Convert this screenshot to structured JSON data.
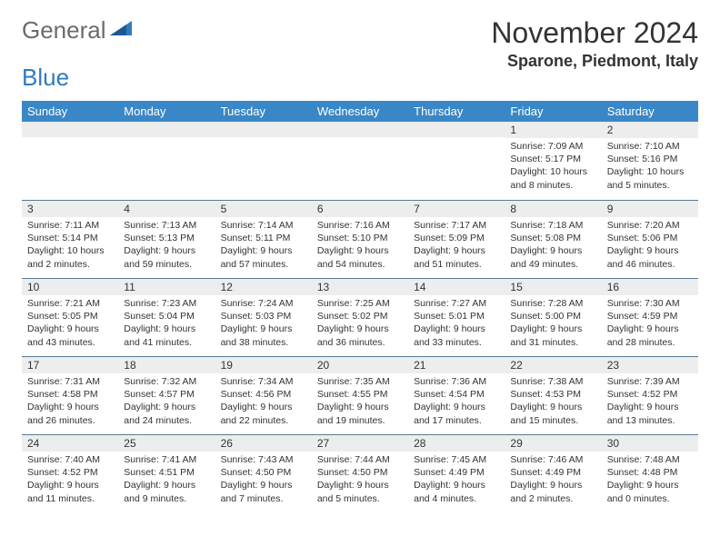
{
  "logo": {
    "text1": "General",
    "text2": "Blue"
  },
  "title": "November 2024",
  "location": "Sparone, Piedmont, Italy",
  "colors": {
    "header_bg": "#3a87c7",
    "daynum_bg": "#eceeee",
    "day_border": "#5a7a94",
    "logo_gray": "#6b6b6b",
    "logo_blue": "#2f7bbf"
  },
  "weekdays": [
    "Sunday",
    "Monday",
    "Tuesday",
    "Wednesday",
    "Thursday",
    "Friday",
    "Saturday"
  ],
  "weeks": [
    [
      null,
      null,
      null,
      null,
      null,
      {
        "n": "1",
        "sr": "7:09 AM",
        "ss": "5:17 PM",
        "dl": "10 hours and 8 minutes."
      },
      {
        "n": "2",
        "sr": "7:10 AM",
        "ss": "5:16 PM",
        "dl": "10 hours and 5 minutes."
      }
    ],
    [
      {
        "n": "3",
        "sr": "7:11 AM",
        "ss": "5:14 PM",
        "dl": "10 hours and 2 minutes."
      },
      {
        "n": "4",
        "sr": "7:13 AM",
        "ss": "5:13 PM",
        "dl": "9 hours and 59 minutes."
      },
      {
        "n": "5",
        "sr": "7:14 AM",
        "ss": "5:11 PM",
        "dl": "9 hours and 57 minutes."
      },
      {
        "n": "6",
        "sr": "7:16 AM",
        "ss": "5:10 PM",
        "dl": "9 hours and 54 minutes."
      },
      {
        "n": "7",
        "sr": "7:17 AM",
        "ss": "5:09 PM",
        "dl": "9 hours and 51 minutes."
      },
      {
        "n": "8",
        "sr": "7:18 AM",
        "ss": "5:08 PM",
        "dl": "9 hours and 49 minutes."
      },
      {
        "n": "9",
        "sr": "7:20 AM",
        "ss": "5:06 PM",
        "dl": "9 hours and 46 minutes."
      }
    ],
    [
      {
        "n": "10",
        "sr": "7:21 AM",
        "ss": "5:05 PM",
        "dl": "9 hours and 43 minutes."
      },
      {
        "n": "11",
        "sr": "7:23 AM",
        "ss": "5:04 PM",
        "dl": "9 hours and 41 minutes."
      },
      {
        "n": "12",
        "sr": "7:24 AM",
        "ss": "5:03 PM",
        "dl": "9 hours and 38 minutes."
      },
      {
        "n": "13",
        "sr": "7:25 AM",
        "ss": "5:02 PM",
        "dl": "9 hours and 36 minutes."
      },
      {
        "n": "14",
        "sr": "7:27 AM",
        "ss": "5:01 PM",
        "dl": "9 hours and 33 minutes."
      },
      {
        "n": "15",
        "sr": "7:28 AM",
        "ss": "5:00 PM",
        "dl": "9 hours and 31 minutes."
      },
      {
        "n": "16",
        "sr": "7:30 AM",
        "ss": "4:59 PM",
        "dl": "9 hours and 28 minutes."
      }
    ],
    [
      {
        "n": "17",
        "sr": "7:31 AM",
        "ss": "4:58 PM",
        "dl": "9 hours and 26 minutes."
      },
      {
        "n": "18",
        "sr": "7:32 AM",
        "ss": "4:57 PM",
        "dl": "9 hours and 24 minutes."
      },
      {
        "n": "19",
        "sr": "7:34 AM",
        "ss": "4:56 PM",
        "dl": "9 hours and 22 minutes."
      },
      {
        "n": "20",
        "sr": "7:35 AM",
        "ss": "4:55 PM",
        "dl": "9 hours and 19 minutes."
      },
      {
        "n": "21",
        "sr": "7:36 AM",
        "ss": "4:54 PM",
        "dl": "9 hours and 17 minutes."
      },
      {
        "n": "22",
        "sr": "7:38 AM",
        "ss": "4:53 PM",
        "dl": "9 hours and 15 minutes."
      },
      {
        "n": "23",
        "sr": "7:39 AM",
        "ss": "4:52 PM",
        "dl": "9 hours and 13 minutes."
      }
    ],
    [
      {
        "n": "24",
        "sr": "7:40 AM",
        "ss": "4:52 PM",
        "dl": "9 hours and 11 minutes."
      },
      {
        "n": "25",
        "sr": "7:41 AM",
        "ss": "4:51 PM",
        "dl": "9 hours and 9 minutes."
      },
      {
        "n": "26",
        "sr": "7:43 AM",
        "ss": "4:50 PM",
        "dl": "9 hours and 7 minutes."
      },
      {
        "n": "27",
        "sr": "7:44 AM",
        "ss": "4:50 PM",
        "dl": "9 hours and 5 minutes."
      },
      {
        "n": "28",
        "sr": "7:45 AM",
        "ss": "4:49 PM",
        "dl": "9 hours and 4 minutes."
      },
      {
        "n": "29",
        "sr": "7:46 AM",
        "ss": "4:49 PM",
        "dl": "9 hours and 2 minutes."
      },
      {
        "n": "30",
        "sr": "7:48 AM",
        "ss": "4:48 PM",
        "dl": "9 hours and 0 minutes."
      }
    ]
  ],
  "labels": {
    "sunrise": "Sunrise:",
    "sunset": "Sunset:",
    "daylight": "Daylight:"
  }
}
